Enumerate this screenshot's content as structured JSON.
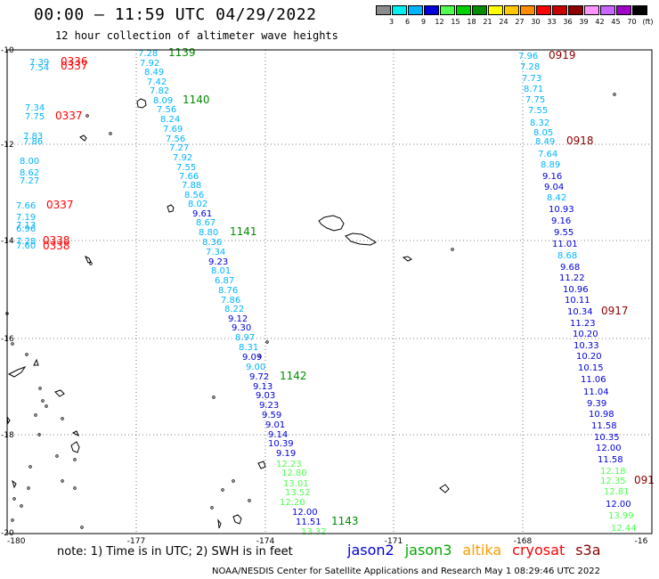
{
  "header": {
    "title": "00:00 – 11:59 UTC 04/29/2022",
    "subtitle": "12 hour collection of altimeter wave heights"
  },
  "colorbar": {
    "unit": "(ft)",
    "labels": [
      "3",
      "6",
      "9",
      "12",
      "15",
      "18",
      "21",
      "24",
      "27",
      "30",
      "33",
      "36",
      "39",
      "42",
      "45",
      "70"
    ],
    "colors": [
      "#8c8c8c",
      "#00f0f0",
      "#00b4ff",
      "#0000dc",
      "#50ff50",
      "#00d200",
      "#008c00",
      "#ffff00",
      "#ffc800",
      "#ff8c00",
      "#ff0000",
      "#c80000",
      "#8c0000",
      "#ff96ff",
      "#c864ff",
      "#a000c8",
      "#000000"
    ]
  },
  "map": {
    "lat_labels": [
      "-10",
      "-12",
      "-14",
      "-16",
      "-18",
      "-20"
    ],
    "lon_labels": [
      "-180",
      "-177",
      "-174",
      "-171",
      "-168",
      "-16"
    ],
    "labels": [
      {
        "t": "7.39",
        "c": "#00b4ff"
      },
      {
        "t": "7.54",
        "c": "#00b4ff"
      },
      {
        "t": "0336",
        "c": "#ff0000"
      },
      {
        "t": "0337",
        "c": "#ff0000"
      },
      {
        "t": "7.34",
        "c": "#00b4ff"
      },
      {
        "t": "7.75",
        "c": "#00b4ff"
      },
      {
        "t": "0337",
        "c": "#ff0000"
      },
      {
        "t": "7.83",
        "c": "#00b4ff"
      },
      {
        "t": "7.86",
        "c": "#00b4ff"
      },
      {
        "t": "8.00",
        "c": "#00b4ff"
      },
      {
        "t": "8.62",
        "c": "#00b4ff"
      },
      {
        "t": "7.27",
        "c": "#00b4ff"
      },
      {
        "t": "7.66",
        "c": "#00b4ff"
      },
      {
        "t": "0337",
        "c": "#ff0000"
      },
      {
        "t": "7.19",
        "c": "#00b4ff"
      },
      {
        "t": "7.13",
        "c": "#00b4ff"
      },
      {
        "t": "6.96",
        "c": "#00b4ff"
      },
      {
        "t": "7.28",
        "c": "#00b4ff"
      },
      {
        "t": "7.60",
        "c": "#00b4ff"
      },
      {
        "t": "0338",
        "c": "#ff0000"
      },
      {
        "t": "0338",
        "c": "#ff0000"
      },
      {
        "t": "7.28",
        "c": "#00b4ff"
      },
      {
        "t": "1139",
        "c": "#008c00"
      },
      {
        "t": "7.92",
        "c": "#00b4ff"
      },
      {
        "t": "8.49",
        "c": "#00b4ff"
      },
      {
        "t": "7.42",
        "c": "#00b4ff"
      },
      {
        "t": "7.82",
        "c": "#00b4ff"
      },
      {
        "t": "8.09",
        "c": "#00b4ff"
      },
      {
        "t": "1140",
        "c": "#008c00"
      },
      {
        "t": "7.56",
        "c": "#00b4ff"
      },
      {
        "t": "8.24",
        "c": "#00b4ff"
      },
      {
        "t": "7.69",
        "c": "#00b4ff"
      },
      {
        "t": "7.56",
        "c": "#00b4ff"
      },
      {
        "t": "7.27",
        "c": "#00b4ff"
      },
      {
        "t": "7.92",
        "c": "#00b4ff"
      },
      {
        "t": "7.55",
        "c": "#00b4ff"
      },
      {
        "t": "7.66",
        "c": "#00b4ff"
      },
      {
        "t": "7.88",
        "c": "#00b4ff"
      },
      {
        "t": "8.56",
        "c": "#00b4ff"
      },
      {
        "t": "8.02",
        "c": "#00b4ff"
      },
      {
        "t": "9.61",
        "c": "#0000dc"
      },
      {
        "t": "8.67",
        "c": "#00b4ff"
      },
      {
        "t": "8.80",
        "c": "#00b4ff"
      },
      {
        "t": "1141",
        "c": "#008c00"
      },
      {
        "t": "8.36",
        "c": "#00b4ff"
      },
      {
        "t": "7.34",
        "c": "#00b4ff"
      },
      {
        "t": "9.23",
        "c": "#0000dc"
      },
      {
        "t": "8.01",
        "c": "#00b4ff"
      },
      {
        "t": "6.87",
        "c": "#00b4ff"
      },
      {
        "t": "8.76",
        "c": "#00b4ff"
      },
      {
        "t": "7.86",
        "c": "#00b4ff"
      },
      {
        "t": "8.22",
        "c": "#00b4ff"
      },
      {
        "t": "9.12",
        "c": "#0000dc"
      },
      {
        "t": "9.30",
        "c": "#0000dc"
      },
      {
        "t": "8.97",
        "c": "#00b4ff"
      },
      {
        "t": "8.31",
        "c": "#00b4ff"
      },
      {
        "t": "9.09",
        "c": "#0000dc"
      },
      {
        "t": "9.00",
        "c": "#00b4ff"
      },
      {
        "t": "9.72",
        "c": "#0000dc"
      },
      {
        "t": "1142",
        "c": "#008c00"
      },
      {
        "t": "9.13",
        "c": "#0000dc"
      },
      {
        "t": "9.03",
        "c": "#0000dc"
      },
      {
        "t": "9.23",
        "c": "#0000dc"
      },
      {
        "t": "9.59",
        "c": "#0000dc"
      },
      {
        "t": "9.01",
        "c": "#0000dc"
      },
      {
        "t": "9.14",
        "c": "#0000dc"
      },
      {
        "t": "10.39",
        "c": "#0000dc"
      },
      {
        "t": "9.19",
        "c": "#0000dc"
      },
      {
        "t": "12.23",
        "c": "#50ff50"
      },
      {
        "t": "12.80",
        "c": "#50ff50"
      },
      {
        "t": "13.01",
        "c": "#50ff50"
      },
      {
        "t": "13.52",
        "c": "#50ff50"
      },
      {
        "t": "12.20",
        "c": "#50ff50"
      },
      {
        "t": "12.00",
        "c": "#0000dc"
      },
      {
        "t": "11.51",
        "c": "#0000dc"
      },
      {
        "t": "1143",
        "c": "#008c00"
      },
      {
        "t": "13.32",
        "c": "#50ff50"
      },
      {
        "t": "7.96",
        "c": "#00b4ff"
      },
      {
        "t": "0919",
        "c": "#8c0000"
      },
      {
        "t": "7.28",
        "c": "#00b4ff"
      },
      {
        "t": "7.73",
        "c": "#00b4ff"
      },
      {
        "t": "8.71",
        "c": "#00b4ff"
      },
      {
        "t": "7.75",
        "c": "#00b4ff"
      },
      {
        "t": "7.55",
        "c": "#00b4ff"
      },
      {
        "t": "8.32",
        "c": "#00b4ff"
      },
      {
        "t": "8.05",
        "c": "#00b4ff"
      },
      {
        "t": "8.49",
        "c": "#00b4ff"
      },
      {
        "t": "0918",
        "c": "#8c0000"
      },
      {
        "t": "7.64",
        "c": "#00b4ff"
      },
      {
        "t": "8.89",
        "c": "#00b4ff"
      },
      {
        "t": "9.16",
        "c": "#0000dc"
      },
      {
        "t": "9.04",
        "c": "#0000dc"
      },
      {
        "t": "8.42",
        "c": "#00b4ff"
      },
      {
        "t": "10.93",
        "c": "#0000dc"
      },
      {
        "t": "9.16",
        "c": "#0000dc"
      },
      {
        "t": "9.55",
        "c": "#0000dc"
      },
      {
        "t": "11.01",
        "c": "#0000dc"
      },
      {
        "t": "8.68",
        "c": "#00b4ff"
      },
      {
        "t": "9.68",
        "c": "#0000dc"
      },
      {
        "t": "11.22",
        "c": "#0000dc"
      },
      {
        "t": "10.96",
        "c": "#0000dc"
      },
      {
        "t": "10.11",
        "c": "#0000dc"
      },
      {
        "t": "10.34",
        "c": "#0000dc"
      },
      {
        "t": "0917",
        "c": "#8c0000"
      },
      {
        "t": "11.23",
        "c": "#0000dc"
      },
      {
        "t": "10.20",
        "c": "#0000dc"
      },
      {
        "t": "10.33",
        "c": "#0000dc"
      },
      {
        "t": "10.20",
        "c": "#0000dc"
      },
      {
        "t": "10.15",
        "c": "#0000dc"
      },
      {
        "t": "11.06",
        "c": "#0000dc"
      },
      {
        "t": "11.04",
        "c": "#0000dc"
      },
      {
        "t": "9.39",
        "c": "#0000dc"
      },
      {
        "t": "10.98",
        "c": "#0000dc"
      },
      {
        "t": "11.58",
        "c": "#0000dc"
      },
      {
        "t": "10.35",
        "c": "#0000dc"
      },
      {
        "t": "12.00",
        "c": "#0000dc"
      },
      {
        "t": "11.58",
        "c": "#0000dc"
      },
      {
        "t": "12.18",
        "c": "#50ff50"
      },
      {
        "t": "12.35",
        "c": "#50ff50"
      },
      {
        "t": "091",
        "c": "#8c0000"
      },
      {
        "t": "12.81",
        "c": "#50ff50"
      },
      {
        "t": "12.00",
        "c": "#0000dc"
      },
      {
        "t": "13.99",
        "c": "#50ff50"
      },
      {
        "t": "12.44",
        "c": "#50ff50"
      }
    ]
  },
  "note": "note: 1) Time is in UTC; 2) SWH is in feet",
  "legend": [
    {
      "name": "jason2",
      "color": "#0000dc"
    },
    {
      "name": "jason3",
      "color": "#00aa00"
    },
    {
      "name": "altika",
      "color": "#ff9900"
    },
    {
      "name": "cryosat",
      "color": "#ff0000"
    },
    {
      "name": "s3a",
      "color": "#8c0000"
    }
  ],
  "footer": "NOAA/NESDIS Center for Satellite Applications and Research    May  1 08:29:46 UTC 2022"
}
